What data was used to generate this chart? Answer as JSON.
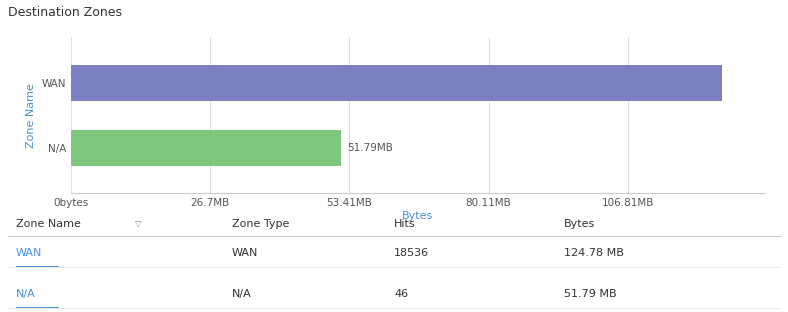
{
  "title": "Destination Zones",
  "categories": [
    "N/A",
    "WAN"
  ],
  "values": [
    51.79,
    124.78
  ],
  "max_val": 133.0,
  "bar_colors": [
    "#7dc87d",
    "#7b7fc4"
  ],
  "ylabel": "Zone Name",
  "xlabel": "Bytes",
  "xlabel_color": "#4a90d9",
  "ylabel_color": "#4a90d9",
  "xtick_labels": [
    "0bytes",
    "26.7MB",
    "53.41MB",
    "80.11MB",
    "106.81MB"
  ],
  "xtick_values": [
    0,
    26.7,
    53.41,
    80.11,
    106.81
  ],
  "bar_label": [
    "51.79MB",
    ""
  ],
  "table_headers": [
    "Zone Name",
    "Zone Type",
    "Hits",
    "Bytes"
  ],
  "table_rows": [
    [
      "WAN",
      "WAN",
      "18536",
      "124.78 MB"
    ],
    [
      "N/A",
      "N/A",
      "46",
      "51.79 MB"
    ]
  ],
  "bg_color": "#ffffff",
  "grid_color": "#e0e0e0",
  "title_fontsize": 9,
  "axis_fontsize": 8,
  "tick_fontsize": 7.5,
  "table_fontsize": 8
}
